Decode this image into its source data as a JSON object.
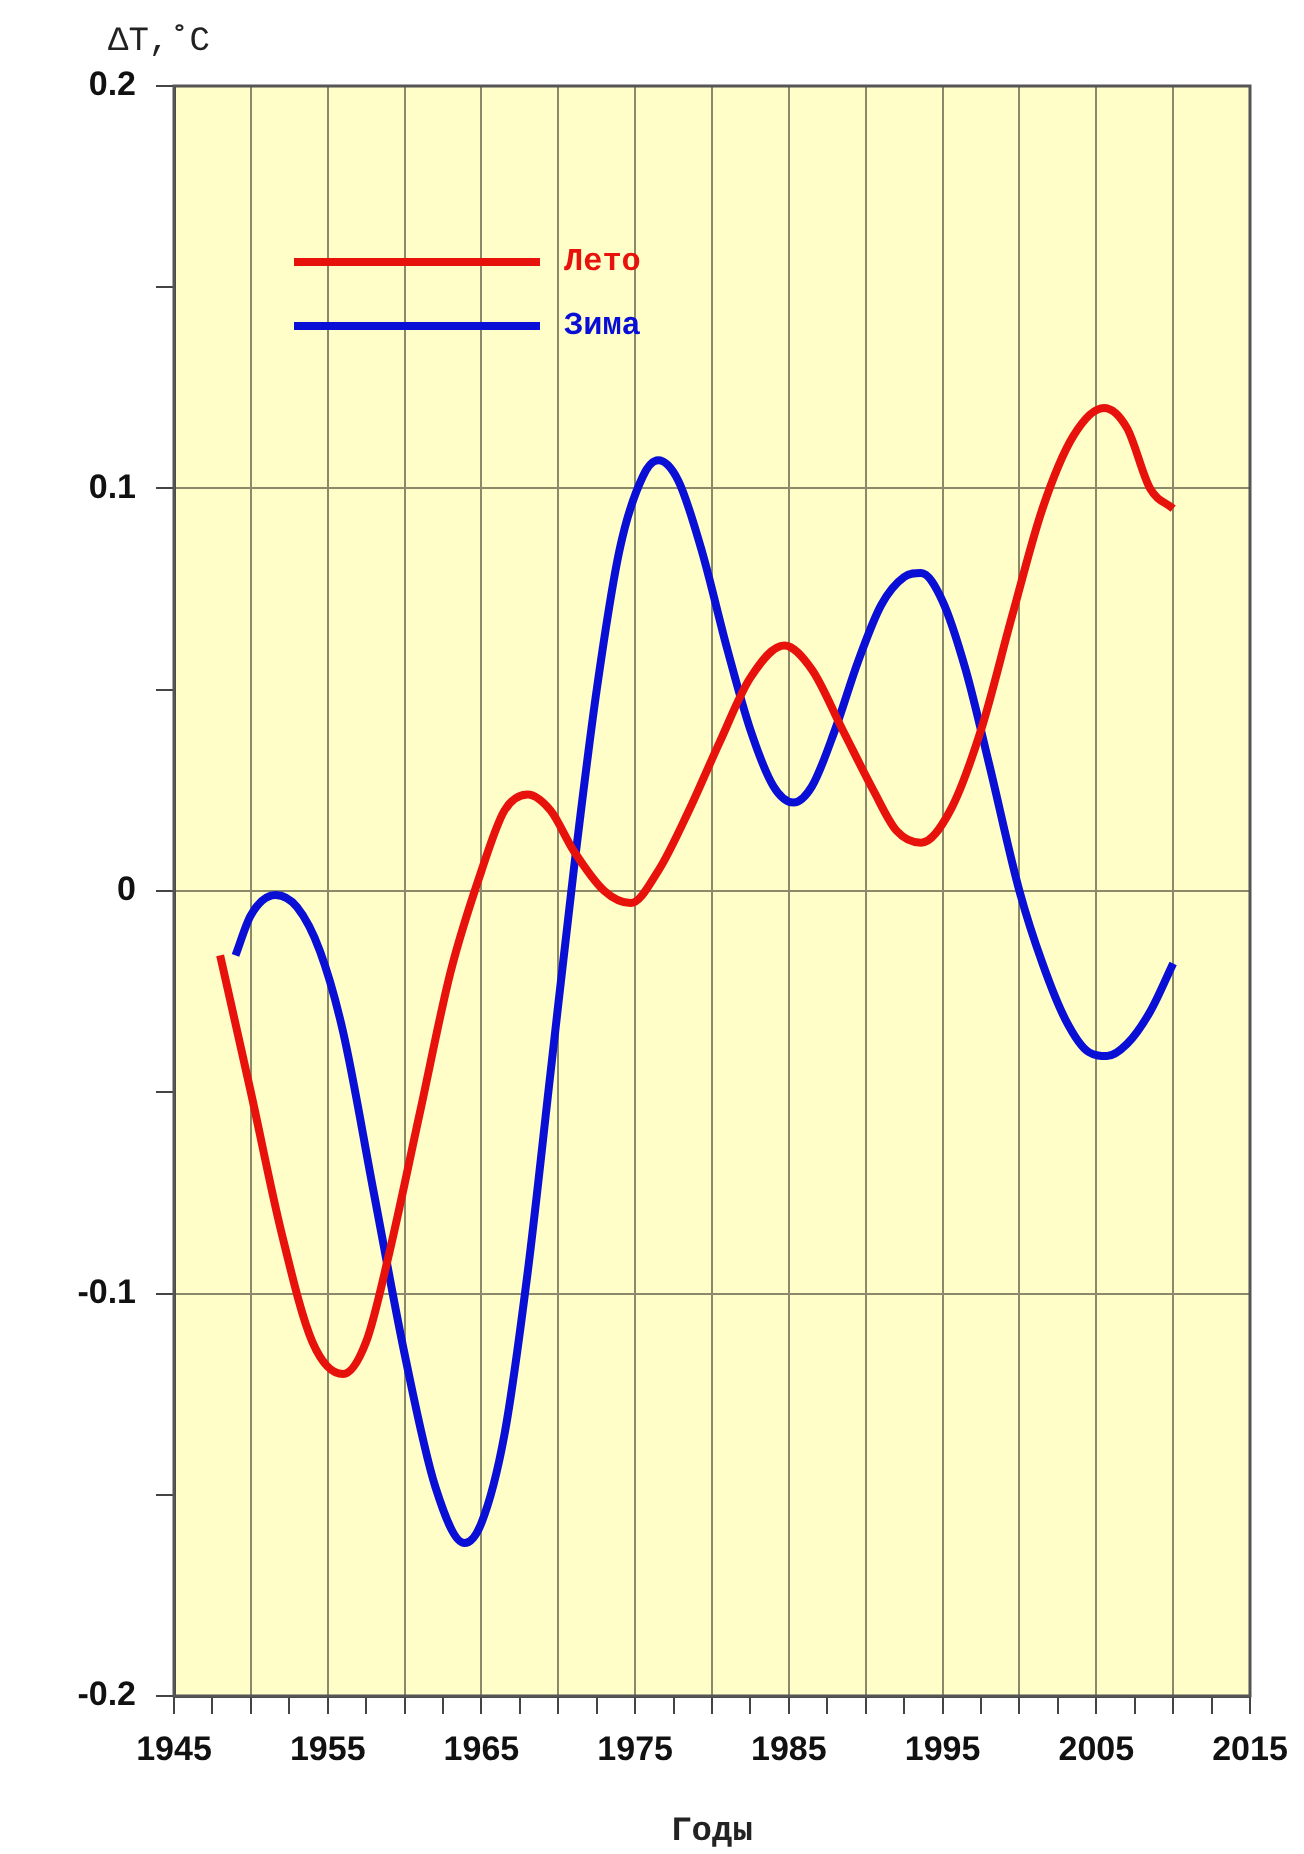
{
  "chart_data": {
    "type": "line",
    "xlabel": "Годы",
    "ylabel": "ΔT,˚C",
    "xlim": [
      1945,
      2015
    ],
    "xticks": [
      1945,
      {
        "value": 1947.5,
        "label": null
      },
      {
        "value": 1950,
        "label": null
      },
      {
        "value": 1952.5,
        "label": null
      },
      1955,
      {
        "value": 1957.5,
        "label": null
      },
      {
        "value": 1960,
        "label": null
      },
      {
        "value": 1962.5,
        "label": null
      },
      1965,
      {
        "value": 1967.5,
        "label": null
      },
      {
        "value": 1970,
        "label": null
      },
      {
        "value": 1972.5,
        "label": null
      },
      1975,
      {
        "value": 1977.5,
        "label": null
      },
      {
        "value": 1980,
        "label": null
      },
      {
        "value": 1982.5,
        "label": null
      },
      1985,
      {
        "value": 1987.5,
        "label": null
      },
      {
        "value": 1990,
        "label": null
      },
      {
        "value": 1992.5,
        "label": null
      },
      1995,
      {
        "value": 1997.5,
        "label": null
      },
      {
        "value": 2000,
        "label": null
      },
      {
        "value": 2002.5,
        "label": null
      },
      2005,
      {
        "value": 2007.5,
        "label": null
      },
      {
        "value": 2010,
        "label": null
      },
      {
        "value": 2012.5,
        "label": null
      },
      2015
    ],
    "ylim": [
      -0.2,
      0.2
    ],
    "yticks": [
      -0.2,
      {
        "value": -0.15,
        "label": null
      },
      -0.1,
      {
        "value": -0.05,
        "label": null
      },
      0,
      {
        "value": 0.05,
        "label": null
      },
      0.1,
      {
        "value": 0.15,
        "label": null
      },
      0.2
    ],
    "grid": true,
    "legend": "top left",
    "marker": "none",
    "line_style": "solid",
    "series": [
      {
        "name": "Лето",
        "color": "#e8120c",
        "x": [
          1948,
          1950,
          1952,
          1954,
          1956,
          1957.5,
          1959,
          1961,
          1963,
          1965,
          1966.5,
          1968,
          1969.5,
          1971,
          1973,
          1974.7,
          1976.5,
          1978.5,
          1980.5,
          1982.5,
          1984.7,
          1986.5,
          1988.5,
          1990.5,
          1992,
          1993.6,
          1995.5,
          1997.5,
          1999.5,
          2001.5,
          2003.5,
          2005.5,
          2007,
          2008.5,
          2010
        ],
        "values": [
          -0.016,
          -0.05,
          -0.085,
          -0.112,
          -0.12,
          -0.112,
          -0.09,
          -0.055,
          -0.02,
          0.005,
          0.02,
          0.024,
          0.02,
          0.01,
          0.0,
          -0.003,
          0.005,
          0.02,
          0.037,
          0.053,
          0.061,
          0.055,
          0.04,
          0.025,
          0.015,
          0.012,
          0.02,
          0.04,
          0.068,
          0.095,
          0.113,
          0.12,
          0.115,
          0.1,
          0.095
        ]
      },
      {
        "name": "Зима",
        "color": "#0a0fd6",
        "x": [
          1949,
          1950,
          1951.6,
          1953,
          1954.5,
          1956,
          1958,
          1960,
          1962,
          1963.9,
          1965,
          1966.5,
          1968,
          1969.5,
          1971,
          1972.5,
          1974,
          1975.5,
          1976.5,
          1977.8,
          1979.3,
          1981,
          1982.5,
          1984,
          1985.3,
          1986.5,
          1988,
          1989.5,
          1991,
          1992.5,
          1993.6,
          1995,
          1996.5,
          1998,
          2000,
          2001.5,
          2003,
          2004.5,
          2005.7,
          2007,
          2008.5,
          2010
        ],
        "values": [
          -0.016,
          -0.006,
          -0.001,
          -0.004,
          -0.015,
          -0.035,
          -0.075,
          -0.115,
          -0.148,
          -0.162,
          -0.157,
          -0.135,
          -0.095,
          -0.045,
          0.005,
          0.05,
          0.085,
          0.103,
          0.107,
          0.102,
          0.085,
          0.06,
          0.04,
          0.026,
          0.022,
          0.026,
          0.04,
          0.057,
          0.071,
          0.078,
          0.079,
          0.072,
          0.055,
          0.032,
          0.0,
          -0.018,
          -0.032,
          -0.04,
          -0.041,
          -0.038,
          -0.03,
          -0.018
        ]
      }
    ]
  }
}
